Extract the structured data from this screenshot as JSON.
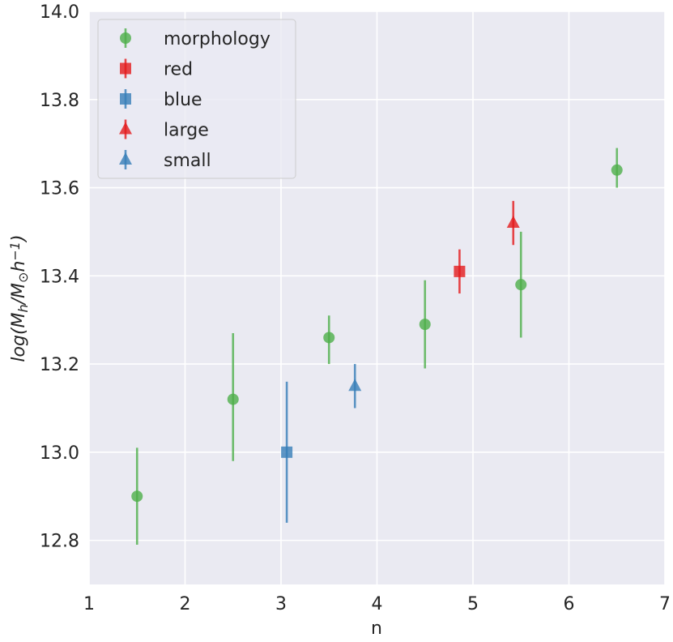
{
  "chart_data": {
    "type": "scatter",
    "xlabel": "n",
    "ylabel": "log(M_h/M_⊙h^{−1})",
    "xlim": [
      1,
      7
    ],
    "ylim": [
      12.7,
      14.0
    ],
    "x_ticks": [
      1,
      2,
      3,
      4,
      5,
      6,
      7
    ],
    "y_ticks": [
      12.8,
      13.0,
      13.2,
      13.4,
      13.6,
      13.8,
      14.0
    ],
    "grid": true,
    "legend_position": "top-left",
    "series": [
      {
        "name": "morphology",
        "marker": "circle",
        "color": "#4daf4a",
        "points": [
          {
            "x": 1.5,
            "y": 12.9,
            "yerr_low": 12.79,
            "yerr_high": 13.01
          },
          {
            "x": 2.5,
            "y": 13.12,
            "yerr_low": 12.98,
            "yerr_high": 13.27
          },
          {
            "x": 3.5,
            "y": 13.26,
            "yerr_low": 13.2,
            "yerr_high": 13.31
          },
          {
            "x": 4.5,
            "y": 13.29,
            "yerr_low": 13.19,
            "yerr_high": 13.39
          },
          {
            "x": 5.5,
            "y": 13.38,
            "yerr_low": 13.26,
            "yerr_high": 13.5
          },
          {
            "x": 6.5,
            "y": 13.64,
            "yerr_low": 13.6,
            "yerr_high": 13.69
          }
        ]
      },
      {
        "name": "red",
        "marker": "square",
        "color": "#e41a1c",
        "points": [
          {
            "x": 4.86,
            "y": 13.41,
            "yerr_low": 13.36,
            "yerr_high": 13.46
          }
        ]
      },
      {
        "name": "blue",
        "marker": "square",
        "color": "#377eb8",
        "points": [
          {
            "x": 3.06,
            "y": 13.0,
            "yerr_low": 12.84,
            "yerr_high": 13.16
          }
        ]
      },
      {
        "name": "large",
        "marker": "triangle",
        "color": "#e41a1c",
        "points": [
          {
            "x": 5.42,
            "y": 13.52,
            "yerr_low": 13.47,
            "yerr_high": 13.57
          }
        ]
      },
      {
        "name": "small",
        "marker": "triangle",
        "color": "#377eb8",
        "points": [
          {
            "x": 3.77,
            "y": 13.15,
            "yerr_low": 13.1,
            "yerr_high": 13.2
          }
        ]
      }
    ]
  }
}
